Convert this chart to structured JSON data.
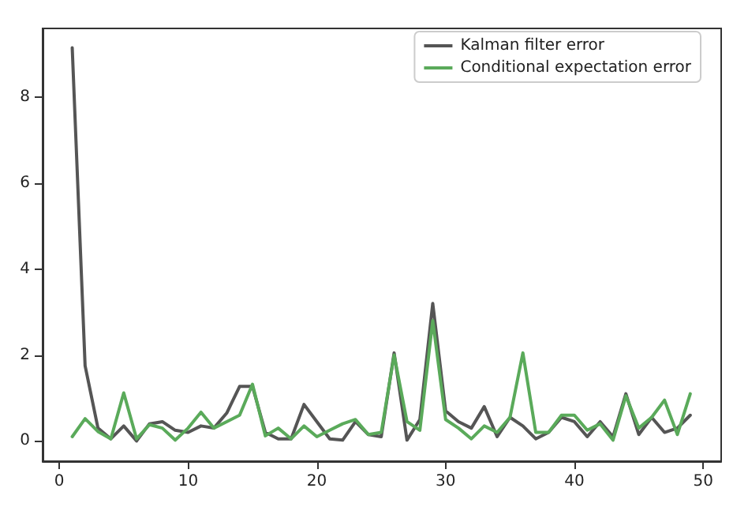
{
  "chart_data": {
    "type": "line",
    "x": [
      1,
      2,
      3,
      4,
      5,
      6,
      7,
      8,
      9,
      10,
      11,
      12,
      13,
      14,
      15,
      16,
      17,
      18,
      19,
      20,
      21,
      22,
      23,
      24,
      25,
      26,
      27,
      28,
      29,
      30,
      31,
      32,
      33,
      34,
      35,
      36,
      37,
      38,
      39,
      40,
      41,
      42,
      43,
      44,
      45,
      46,
      47,
      48,
      49
    ],
    "series": [
      {
        "name": "Kalman filter error",
        "color": "#555555",
        "values": [
          9.15,
          1.75,
          0.3,
          0.05,
          0.35,
          0.0,
          0.4,
          0.45,
          0.25,
          0.2,
          0.35,
          0.3,
          0.65,
          1.27,
          1.27,
          0.2,
          0.05,
          0.05,
          0.85,
          0.45,
          0.05,
          0.02,
          0.45,
          0.15,
          0.1,
          2.05,
          0.02,
          0.5,
          3.2,
          0.7,
          0.45,
          0.3,
          0.8,
          0.1,
          0.55,
          0.35,
          0.05,
          0.2,
          0.55,
          0.45,
          0.1,
          0.45,
          0.1,
          1.1,
          0.15,
          0.55,
          0.2,
          0.3,
          0.6
        ]
      },
      {
        "name": "Conditional expectation error",
        "color": "#5aaa5a",
        "values": [
          0.1,
          0.52,
          0.22,
          0.05,
          1.12,
          0.05,
          0.38,
          0.3,
          0.02,
          0.3,
          0.67,
          0.3,
          0.45,
          0.6,
          1.32,
          0.12,
          0.3,
          0.05,
          0.35,
          0.1,
          0.25,
          0.4,
          0.5,
          0.15,
          0.2,
          2.0,
          0.45,
          0.25,
          2.8,
          0.5,
          0.3,
          0.05,
          0.35,
          0.2,
          0.55,
          2.05,
          0.2,
          0.2,
          0.6,
          0.6,
          0.25,
          0.4,
          0.02,
          1.05,
          0.3,
          0.55,
          0.95,
          0.15,
          1.1
        ]
      }
    ],
    "xlim": [
      -1.3,
      51.4
    ],
    "xticks": [
      0,
      10,
      20,
      30,
      40,
      50
    ],
    "ylim": [
      -0.47,
      9.6
    ],
    "yticks": [
      0,
      2,
      4,
      6,
      8
    ],
    "grid": false,
    "legend": "top right",
    "marker": "none",
    "line_style": "solid"
  }
}
